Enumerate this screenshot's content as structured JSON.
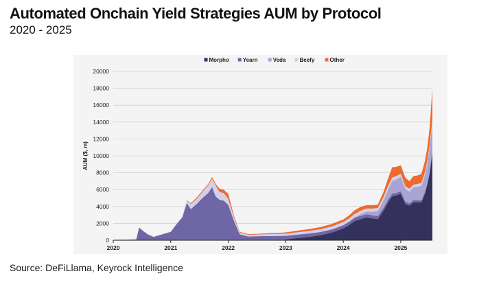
{
  "header": {
    "title": "Automated Onchain Yield Strategies AUM by Protocol",
    "subtitle": "2020 - 2025"
  },
  "footer": {
    "source": "Source: DeFiLlama, Keyrock Intelligence"
  },
  "chart_data": {
    "type": "area",
    "stacked": true,
    "title": "Automated Onchain Yield Strategies AUM by Protocol",
    "subtitle": "2020 - 2025",
    "xlabel": "",
    "ylabel": "AUM ($, m)",
    "ylim": [
      0,
      20000
    ],
    "xlim": [
      2020.0,
      2025.55
    ],
    "yticks": [
      0,
      2000,
      4000,
      6000,
      8000,
      10000,
      12000,
      14000,
      16000,
      18000,
      20000
    ],
    "ytick_labels": [
      "0",
      "2000",
      "4000",
      "6000",
      "8000",
      "10000",
      "12000",
      "14000",
      "16000",
      "18000",
      "20000"
    ],
    "xticks": [
      2020,
      2021,
      2022,
      2023,
      2024,
      2025
    ],
    "xtick_labels": [
      "2020",
      "2021",
      "2022",
      "2023",
      "2024",
      "2025"
    ],
    "grid": true,
    "legend_position": "top-center",
    "x": [
      2020.0,
      2020.4,
      2020.45,
      2020.52,
      2020.6,
      2020.7,
      2020.8,
      2020.9,
      2021.0,
      2021.1,
      2021.2,
      2021.28,
      2021.35,
      2021.45,
      2021.55,
      2021.65,
      2021.72,
      2021.78,
      2021.85,
      2021.92,
      2022.0,
      2022.1,
      2022.2,
      2022.35,
      2022.5,
      2022.7,
      2022.9,
      2023.0,
      2023.2,
      2023.4,
      2023.6,
      2023.8,
      2024.0,
      2024.1,
      2024.2,
      2024.3,
      2024.4,
      2024.5,
      2024.6,
      2024.7,
      2024.78,
      2024.85,
      2024.92,
      2025.0,
      2025.08,
      2025.15,
      2025.22,
      2025.3,
      2025.36,
      2025.42,
      2025.46,
      2025.5,
      2025.55
    ],
    "series": [
      {
        "name": "Morpho",
        "color": "#34315c",
        "values": [
          0,
          0,
          0,
          0,
          0,
          0,
          0,
          0,
          0,
          0,
          0,
          0,
          0,
          0,
          0,
          0,
          0,
          0,
          0,
          0,
          0,
          0,
          0,
          0,
          0,
          0,
          0,
          100,
          250,
          400,
          600,
          900,
          1400,
          1800,
          2300,
          2500,
          2700,
          2600,
          2500,
          3500,
          4500,
          5200,
          5300,
          5500,
          4300,
          4100,
          4500,
          4500,
          4500,
          5500,
          6500,
          7800,
          10400
        ]
      },
      {
        "name": "Yearn",
        "color": "#6f66a6",
        "values": [
          50,
          100,
          1500,
          1100,
          700,
          400,
          600,
          800,
          1000,
          1900,
          2700,
          4400,
          3700,
          4300,
          5000,
          5600,
          6300,
          5200,
          4800,
          4700,
          4200,
          2300,
          700,
          450,
          480,
          500,
          520,
          430,
          420,
          400,
          380,
          380,
          380,
          390,
          400,
          390,
          380,
          370,
          360,
          340,
          330,
          320,
          300,
          300,
          280,
          270,
          260,
          250,
          240,
          230,
          220,
          210,
          200
        ]
      },
      {
        "name": "Veda",
        "color": "#a9a4d0",
        "values": [
          0,
          0,
          0,
          0,
          0,
          0,
          0,
          0,
          0,
          0,
          0,
          0,
          0,
          0,
          0,
          0,
          0,
          0,
          0,
          0,
          0,
          0,
          0,
          0,
          0,
          0,
          0,
          0,
          0,
          0,
          0,
          0,
          0,
          0,
          0,
          200,
          300,
          400,
          600,
          900,
          1200,
          1500,
          1600,
          1700,
          1500,
          1400,
          1500,
          1600,
          1700,
          2000,
          2300,
          2800,
          3300
        ]
      },
      {
        "name": "Beefy",
        "color": "#d3d0e8",
        "values": [
          0,
          0,
          0,
          0,
          0,
          0,
          0,
          0,
          0,
          50,
          100,
          300,
          600,
          600,
          700,
          900,
          1000,
          1300,
          900,
          900,
          700,
          400,
          200,
          200,
          200,
          220,
          240,
          250,
          280,
          300,
          320,
          350,
          380,
          400,
          420,
          400,
          380,
          380,
          360,
          380,
          400,
          420,
          400,
          380,
          330,
          330,
          330,
          340,
          340,
          350,
          360,
          370,
          380
        ]
      },
      {
        "name": "Other",
        "color": "#ee6a2f",
        "values": [
          0,
          0,
          0,
          0,
          0,
          0,
          0,
          0,
          0,
          0,
          0,
          50,
          100,
          150,
          150,
          150,
          200,
          200,
          400,
          400,
          600,
          200,
          100,
          80,
          80,
          100,
          120,
          150,
          180,
          220,
          250,
          300,
          300,
          350,
          450,
          450,
          400,
          400,
          400,
          600,
          900,
          1200,
          1100,
          1000,
          1000,
          900,
          1000,
          1000,
          1100,
          1300,
          1500,
          2000,
          3700
        ]
      }
    ]
  }
}
